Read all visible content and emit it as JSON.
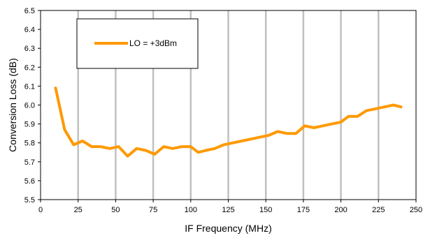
{
  "chart_data": {
    "type": "line",
    "title": "",
    "xlabel": "IF Frequency (MHz)",
    "ylabel": "Conversion Loss (dB)",
    "xlim": [
      0,
      250
    ],
    "ylim": [
      5.5,
      6.5
    ],
    "xticks": [
      0,
      25,
      50,
      75,
      100,
      125,
      150,
      175,
      200,
      225,
      250
    ],
    "yticks": [
      5.5,
      5.6,
      5.7,
      5.8,
      5.9,
      6.0,
      6.1,
      6.2,
      6.3,
      6.4,
      6.5
    ],
    "xtick_labels": [
      "0",
      "25",
      "50",
      "75",
      "100",
      "125",
      "150",
      "175",
      "200",
      "225",
      "250"
    ],
    "ytick_labels": [
      "5.5",
      "5.6",
      "5.7",
      "5.8",
      "5.9",
      "6.0",
      "6.1",
      "6.2",
      "6.3",
      "6.4",
      "6.5"
    ],
    "grid": "vertical",
    "legend_position": "top-left",
    "series": [
      {
        "name": "LO = +3dBm",
        "color": "#FF9900",
        "x": [
          10,
          16,
          22,
          28,
          34,
          40,
          46,
          52,
          58,
          64,
          70,
          76,
          82,
          88,
          94,
          100,
          105,
          110,
          116,
          122,
          128,
          134,
          140,
          146,
          152,
          158,
          164,
          170,
          176,
          182,
          188,
          194,
          200,
          205,
          211,
          217,
          223,
          229,
          235,
          240
        ],
        "y": [
          6.09,
          5.87,
          5.79,
          5.81,
          5.78,
          5.78,
          5.77,
          5.78,
          5.73,
          5.77,
          5.76,
          5.74,
          5.78,
          5.77,
          5.78,
          5.78,
          5.75,
          5.76,
          5.77,
          5.79,
          5.8,
          5.81,
          5.82,
          5.83,
          5.84,
          5.86,
          5.85,
          5.85,
          5.89,
          5.88,
          5.89,
          5.9,
          5.91,
          5.94,
          5.94,
          5.97,
          5.98,
          5.99,
          6.0,
          5.99
        ]
      }
    ]
  }
}
